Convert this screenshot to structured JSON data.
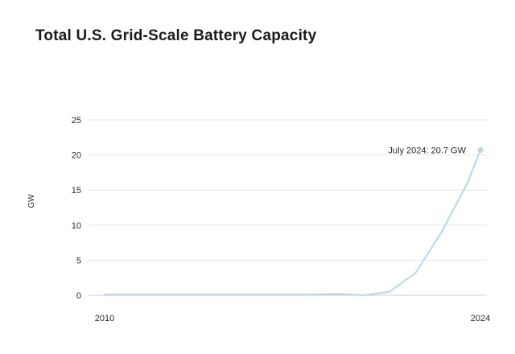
{
  "chart_data": {
    "type": "line",
    "title": "Total U.S. Grid-Scale Battery Capacity",
    "xlabel": "",
    "ylabel": "GW",
    "xlim": [
      2010,
      2024.5
    ],
    "ylim": [
      0,
      25
    ],
    "yticks": [
      0,
      5,
      10,
      15,
      20,
      25
    ],
    "xtick_labels": [
      {
        "label": "2010",
        "x": 2010
      },
      {
        "label": "2024",
        "x": 2024.5
      }
    ],
    "grid": true,
    "series": [
      {
        "color": "#b7d8e8",
        "x": [
          2010,
          2011,
          2012,
          2013,
          2014,
          2015,
          2016,
          2017,
          2018,
          2019,
          2020,
          2021,
          2022,
          2023,
          2024,
          2024.5
        ],
        "values": [
          0.1,
          0.1,
          0.1,
          0.1,
          0.1,
          0.1,
          0.1,
          0.1,
          0.1,
          0.2,
          0.0,
          0.5,
          3.2,
          9.0,
          16.0,
          20.7
        ]
      }
    ],
    "annotation": {
      "text": "July 2024: 20.7 GW",
      "x": 2024.5,
      "y": 20.7
    }
  }
}
